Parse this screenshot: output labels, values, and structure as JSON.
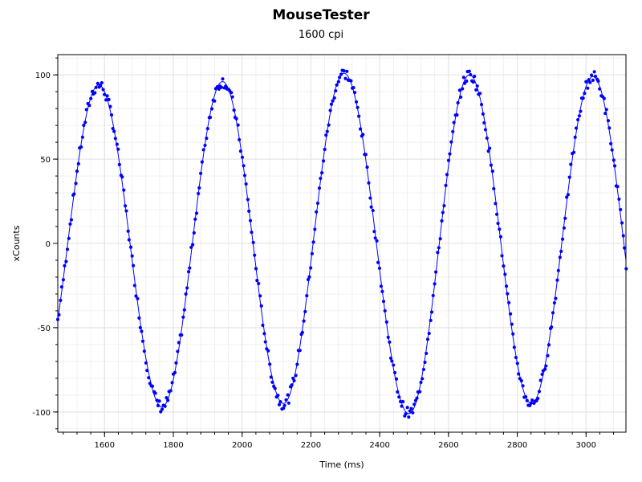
{
  "chart_data": {
    "type": "scatter",
    "title": "MouseTester",
    "subtitle": "1600 cpi",
    "xlabel": "Time (ms)",
    "ylabel": "xCounts",
    "xlim": [
      1464,
      3116
    ],
    "ylim": [
      -112,
      112
    ],
    "x_ticks": [
      1600,
      1800,
      2000,
      2200,
      2400,
      2600,
      2800,
      3000
    ],
    "y_ticks": [
      100,
      50,
      0,
      -50,
      -100
    ],
    "grid": true,
    "marker_color": "#0000ff",
    "line_color": "#0000ff",
    "sine_fit": {
      "period_ms": 360,
      "peaks": [
        {
          "x": 1583,
          "y": 94
        },
        {
          "x": 1943,
          "y": 96
        },
        {
          "x": 2296,
          "y": 101
        },
        {
          "x": 2661,
          "y": 100
        },
        {
          "x": 3020,
          "y": 99
        }
      ],
      "troughs": [
        {
          "x": 1767,
          "y": -97
        },
        {
          "x": 2120,
          "y": -95
        },
        {
          "x": 2485,
          "y": -101
        },
        {
          "x": 2841,
          "y": -95
        }
      ],
      "start": {
        "x": 1464,
        "y": -71
      },
      "end": {
        "x": 3116,
        "y": 3
      }
    }
  }
}
